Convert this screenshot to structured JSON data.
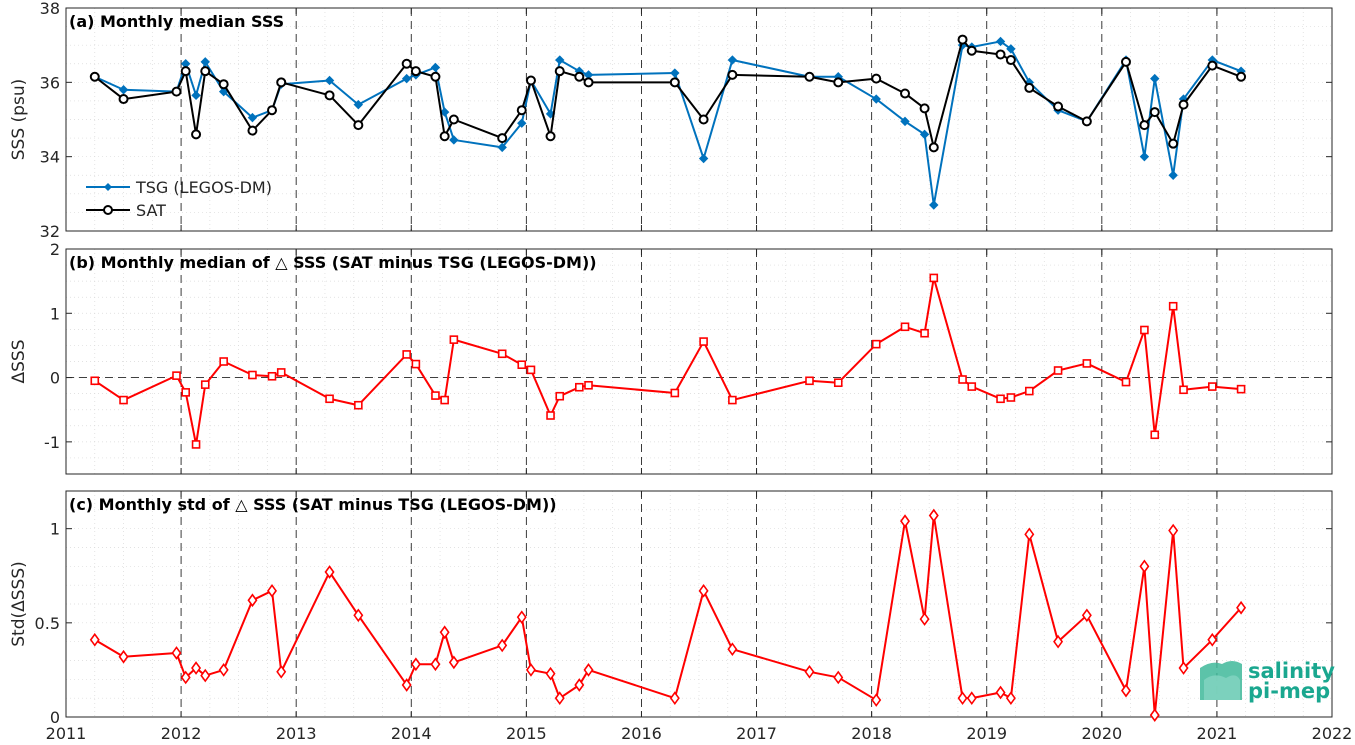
{
  "chart_data": [
    {
      "type": "line",
      "title": "(a) Monthly median SSS",
      "ylabel": "SSS (psu)",
      "ylim": [
        32,
        38
      ],
      "yticks": [
        32,
        34,
        36,
        38
      ],
      "xlim": [
        2011,
        2022
      ],
      "xticks": [
        2011,
        2012,
        2013,
        2014,
        2015,
        2016,
        2017,
        2018,
        2019,
        2020,
        2021,
        2022
      ],
      "grid": true,
      "legend_position": "lower-left",
      "series": [
        {
          "name": "TSG (LEGOS-DM)",
          "color": "#0072bd",
          "marker": "diamond",
          "x": [
            2011.25,
            2011.5,
            2011.96,
            2012.04,
            2012.13,
            2012.21,
            2012.37,
            2012.62,
            2012.79,
            2012.87,
            2013.29,
            2013.54,
            2013.96,
            2014.04,
            2014.21,
            2014.29,
            2014.37,
            2014.79,
            2014.96,
            2015.04,
            2015.21,
            2015.29,
            2015.46,
            2015.54,
            2016.29,
            2016.54,
            2016.79,
            2017.46,
            2017.71,
            2018.04,
            2018.29,
            2018.46,
            2018.54,
            2018.79,
            2018.87,
            2019.12,
            2019.21,
            2019.37,
            2019.62,
            2019.87,
            2020.21,
            2020.37,
            2020.46,
            2020.62,
            2020.71,
            2020.96,
            2021.21
          ],
          "y": [
            36.15,
            35.8,
            35.75,
            36.5,
            35.65,
            36.55,
            35.75,
            35.05,
            35.25,
            35.95,
            36.05,
            35.4,
            36.1,
            36.2,
            36.4,
            35.2,
            34.45,
            34.25,
            34.9,
            36.05,
            35.15,
            36.6,
            36.3,
            36.2,
            36.25,
            33.95,
            36.6,
            36.15,
            36.15,
            35.55,
            34.95,
            34.6,
            32.7,
            37.0,
            36.95,
            37.1,
            36.9,
            36.0,
            35.25,
            34.95,
            36.6,
            34.0,
            36.1,
            33.5,
            35.55,
            36.6,
            36.3
          ]
        },
        {
          "name": "SAT",
          "color": "#000000",
          "marker": "circle",
          "x": [
            2011.25,
            2011.5,
            2011.96,
            2012.04,
            2012.13,
            2012.21,
            2012.37,
            2012.62,
            2012.79,
            2012.87,
            2013.29,
            2013.54,
            2013.96,
            2014.04,
            2014.21,
            2014.29,
            2014.37,
            2014.79,
            2014.96,
            2015.04,
            2015.21,
            2015.29,
            2015.46,
            2015.54,
            2016.29,
            2016.54,
            2016.79,
            2017.46,
            2017.71,
            2018.04,
            2018.29,
            2018.46,
            2018.54,
            2018.79,
            2018.87,
            2019.12,
            2019.21,
            2019.37,
            2019.62,
            2019.87,
            2020.21,
            2020.37,
            2020.46,
            2020.62,
            2020.71,
            2020.96,
            2021.21
          ],
          "y": [
            36.15,
            35.55,
            35.75,
            36.3,
            34.6,
            36.3,
            35.95,
            34.7,
            35.25,
            36.0,
            35.65,
            34.85,
            36.5,
            36.3,
            36.15,
            34.55,
            35.0,
            34.5,
            35.25,
            36.05,
            34.55,
            36.3,
            36.15,
            36.0,
            36.0,
            35.0,
            36.2,
            36.15,
            36.0,
            36.1,
            35.7,
            35.3,
            34.25,
            37.15,
            36.85,
            36.75,
            36.6,
            35.85,
            35.35,
            34.95,
            36.55,
            34.85,
            35.2,
            34.35,
            35.4,
            36.45,
            36.15
          ]
        }
      ]
    },
    {
      "type": "line",
      "title": "(b) Monthly median of △ SSS (SAT minus TSG (LEGOS-DM))",
      "ylabel": "ΔSSS",
      "ylim": [
        -1.5,
        2
      ],
      "yticks": [
        -1,
        0,
        1,
        2
      ],
      "ytick_labels": [
        "-1",
        "0",
        "1",
        "2"
      ],
      "xlim": [
        2011,
        2022
      ],
      "grid": true,
      "zero_line": true,
      "series": [
        {
          "name": "",
          "color": "#ff0000",
          "marker": "square",
          "x": [
            2011.25,
            2011.5,
            2011.96,
            2012.04,
            2012.13,
            2012.21,
            2012.37,
            2012.62,
            2012.79,
            2012.87,
            2013.29,
            2013.54,
            2013.96,
            2014.04,
            2014.21,
            2014.29,
            2014.37,
            2014.79,
            2014.96,
            2015.04,
            2015.21,
            2015.29,
            2015.46,
            2015.54,
            2016.29,
            2016.54,
            2016.79,
            2017.46,
            2017.71,
            2018.04,
            2018.29,
            2018.46,
            2018.54,
            2018.79,
            2018.87,
            2019.12,
            2019.21,
            2019.37,
            2019.62,
            2019.87,
            2020.21,
            2020.37,
            2020.46,
            2020.62,
            2020.71,
            2020.96,
            2021.21
          ],
          "y": [
            -0.05,
            -0.35,
            0.03,
            -0.23,
            -1.04,
            -0.11,
            0.25,
            0.04,
            0.02,
            0.08,
            -0.33,
            -0.43,
            0.36,
            0.21,
            -0.28,
            -0.35,
            0.59,
            0.37,
            0.2,
            0.12,
            -0.59,
            -0.29,
            -0.15,
            -0.12,
            -0.24,
            0.56,
            -0.35,
            -0.05,
            -0.08,
            0.52,
            0.79,
            0.69,
            1.55,
            -0.03,
            -0.14,
            -0.33,
            -0.31,
            -0.21,
            0.11,
            0.22,
            -0.07,
            0.74,
            -0.89,
            1.11,
            -0.19,
            -0.14,
            -0.18
          ]
        }
      ]
    },
    {
      "type": "line",
      "title": "(c) Monthly std of △ SSS (SAT minus TSG (LEGOS-DM))",
      "ylabel": "Std(ΔSSS)",
      "ylim": [
        0,
        1.2
      ],
      "yticks": [
        0,
        0.5,
        1
      ],
      "ytick_labels": [
        "0",
        "0.5",
        "1"
      ],
      "xlim": [
        2011,
        2022
      ],
      "xticks": [
        2011,
        2012,
        2013,
        2014,
        2015,
        2016,
        2017,
        2018,
        2019,
        2020,
        2021,
        2022
      ],
      "grid": true,
      "series": [
        {
          "name": "",
          "color": "#ff0000",
          "marker": "diamond",
          "x": [
            2011.25,
            2011.5,
            2011.96,
            2012.04,
            2012.13,
            2012.21,
            2012.37,
            2012.62,
            2012.79,
            2012.87,
            2013.29,
            2013.54,
            2013.96,
            2014.04,
            2014.21,
            2014.29,
            2014.37,
            2014.79,
            2014.96,
            2015.04,
            2015.21,
            2015.29,
            2015.46,
            2015.54,
            2016.29,
            2016.54,
            2016.79,
            2017.46,
            2017.71,
            2018.04,
            2018.29,
            2018.46,
            2018.54,
            2018.79,
            2018.87,
            2019.12,
            2019.21,
            2019.37,
            2019.62,
            2019.87,
            2020.21,
            2020.37,
            2020.46,
            2020.62,
            2020.71,
            2020.96,
            2021.21
          ],
          "y": [
            0.41,
            0.32,
            0.34,
            0.21,
            0.26,
            0.22,
            0.25,
            0.62,
            0.67,
            0.24,
            0.77,
            0.54,
            0.17,
            0.28,
            0.28,
            0.45,
            0.29,
            0.38,
            0.53,
            0.25,
            0.23,
            0.1,
            0.17,
            0.25,
            0.1,
            0.67,
            0.36,
            0.24,
            0.21,
            0.09,
            1.04,
            0.52,
            1.07,
            0.1,
            0.1,
            0.13,
            0.1,
            0.97,
            0.4,
            0.54,
            0.14,
            0.8,
            0.01,
            0.99,
            0.26,
            0.41,
            0.58
          ]
        }
      ]
    }
  ],
  "logo": {
    "line1": "salinity",
    "line2": "pi-mep"
  }
}
